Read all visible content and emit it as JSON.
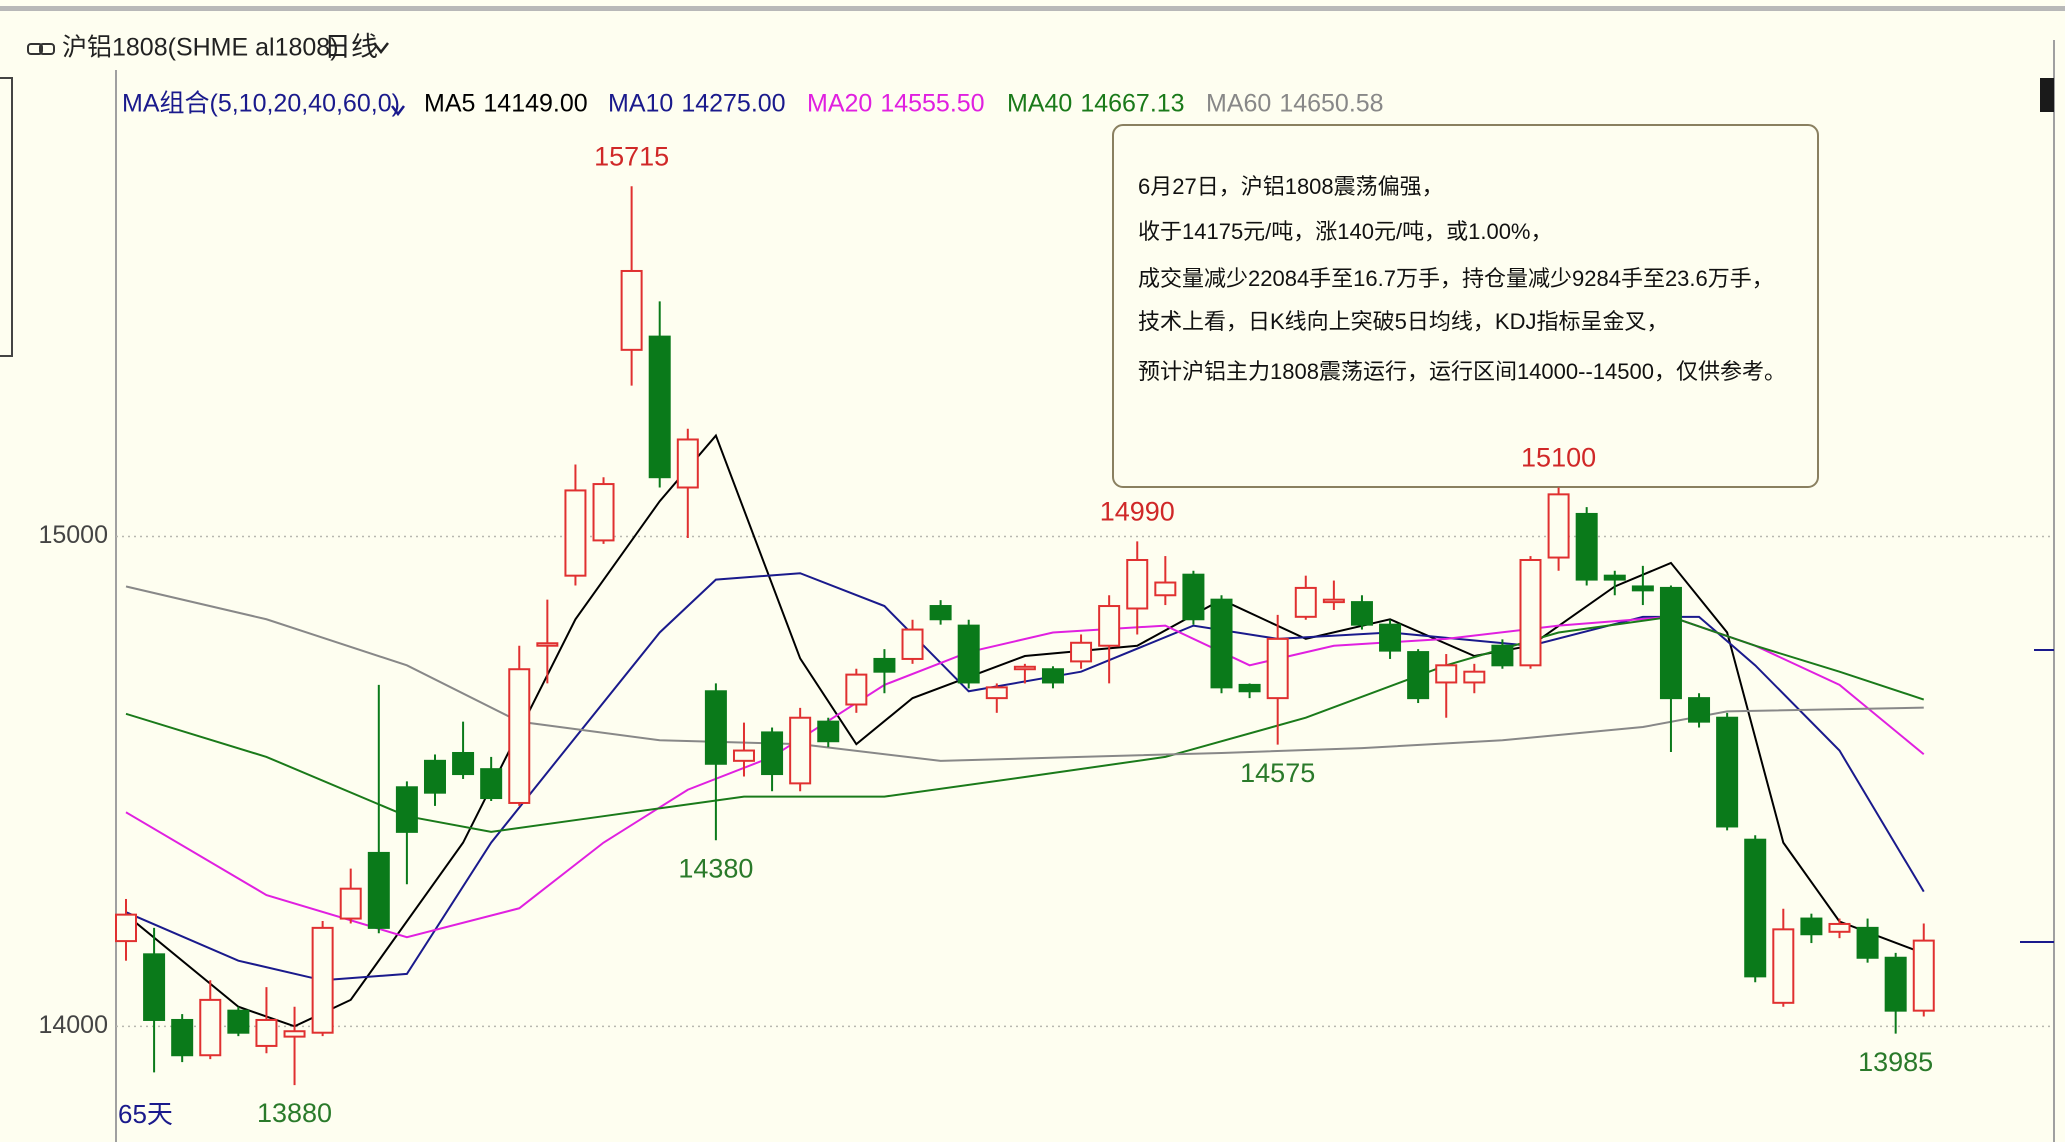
{
  "chart_data": {
    "type": "candlestick",
    "title": "沪铝1808(SHME al1808)",
    "period": "日线",
    "ma_label": "MA组合(5,10,20,40,60,0)",
    "days_label": "65天",
    "ylim": [
      13770,
      15840
    ],
    "yticks": [
      14000,
      15000
    ],
    "grid": true,
    "up_color": "#e03030",
    "down_color": "#0a7a1a",
    "candles": [
      {
        "o": 14174,
        "h": 14260,
        "l": 14134,
        "c": 14228
      },
      {
        "o": 14147,
        "h": 14201,
        "l": 13906,
        "c": 14013
      },
      {
        "o": 14013,
        "h": 14025,
        "l": 13927,
        "c": 13941
      },
      {
        "o": 13941,
        "h": 14094,
        "l": 13933,
        "c": 14054
      },
      {
        "o": 14032,
        "h": 14040,
        "l": 13980,
        "c": 13987
      },
      {
        "o": 13960,
        "h": 14080,
        "l": 13945,
        "c": 14013
      },
      {
        "o": 13979,
        "h": 14040,
        "l": 13880,
        "c": 13990
      },
      {
        "o": 13987,
        "h": 14215,
        "l": 13980,
        "c": 14201
      },
      {
        "o": 14220,
        "h": 14322,
        "l": 14210,
        "c": 14281
      },
      {
        "o": 14354,
        "h": 14697,
        "l": 14190,
        "c": 14201
      },
      {
        "o": 14488,
        "h": 14500,
        "l": 14290,
        "c": 14397
      },
      {
        "o": 14542,
        "h": 14555,
        "l": 14450,
        "c": 14477
      },
      {
        "o": 14558,
        "h": 14622,
        "l": 14505,
        "c": 14515
      },
      {
        "o": 14525,
        "h": 14550,
        "l": 14460,
        "c": 14466
      },
      {
        "o": 14456,
        "h": 14777,
        "l": 14450,
        "c": 14729
      },
      {
        "o": 14777,
        "h": 14871,
        "l": 14700,
        "c": 14782
      },
      {
        "o": 14920,
        "h": 15147,
        "l": 14900,
        "c": 15094
      },
      {
        "o": 14992,
        "h": 15121,
        "l": 14985,
        "c": 15107
      },
      {
        "o": 15381,
        "h": 15715,
        "l": 15308,
        "c": 15542
      },
      {
        "o": 15408,
        "h": 15480,
        "l": 15100,
        "c": 15121
      },
      {
        "o": 15100,
        "h": 15220,
        "l": 14997,
        "c": 15198
      },
      {
        "o": 14684,
        "h": 14700,
        "l": 14380,
        "c": 14536
      },
      {
        "o": 14542,
        "h": 14620,
        "l": 14510,
        "c": 14563
      },
      {
        "o": 14600,
        "h": 14610,
        "l": 14480,
        "c": 14515
      },
      {
        "o": 14496,
        "h": 14650,
        "l": 14480,
        "c": 14630
      },
      {
        "o": 14622,
        "h": 14630,
        "l": 14570,
        "c": 14582
      },
      {
        "o": 14657,
        "h": 14730,
        "l": 14640,
        "c": 14718
      },
      {
        "o": 14750,
        "h": 14770,
        "l": 14680,
        "c": 14724
      },
      {
        "o": 14750,
        "h": 14830,
        "l": 14740,
        "c": 14810
      },
      {
        "o": 14858,
        "h": 14870,
        "l": 14820,
        "c": 14831
      },
      {
        "o": 14818,
        "h": 14830,
        "l": 14690,
        "c": 14702
      },
      {
        "o": 14670,
        "h": 14700,
        "l": 14640,
        "c": 14692
      },
      {
        "o": 14729,
        "h": 14740,
        "l": 14700,
        "c": 14734
      },
      {
        "o": 14729,
        "h": 14735,
        "l": 14690,
        "c": 14702
      },
      {
        "o": 14745,
        "h": 14800,
        "l": 14730,
        "c": 14783
      },
      {
        "o": 14777,
        "h": 14880,
        "l": 14700,
        "c": 14858
      },
      {
        "o": 14853,
        "h": 14990,
        "l": 14800,
        "c": 14952
      },
      {
        "o": 14880,
        "h": 14960,
        "l": 14860,
        "c": 14906
      },
      {
        "o": 14922,
        "h": 14930,
        "l": 14820,
        "c": 14831
      },
      {
        "o": 14871,
        "h": 14880,
        "l": 14680,
        "c": 14692
      },
      {
        "o": 14697,
        "h": 14700,
        "l": 14670,
        "c": 14684
      },
      {
        "o": 14670,
        "h": 14840,
        "l": 14575,
        "c": 14791
      },
      {
        "o": 14836,
        "h": 14920,
        "l": 14830,
        "c": 14895
      },
      {
        "o": 14866,
        "h": 14910,
        "l": 14850,
        "c": 14871
      },
      {
        "o": 14866,
        "h": 14880,
        "l": 14810,
        "c": 14820
      },
      {
        "o": 14820,
        "h": 14830,
        "l": 14750,
        "c": 14767
      },
      {
        "o": 14764,
        "h": 14770,
        "l": 14660,
        "c": 14670
      },
      {
        "o": 14702,
        "h": 14760,
        "l": 14630,
        "c": 14737
      },
      {
        "o": 14702,
        "h": 14740,
        "l": 14680,
        "c": 14724
      },
      {
        "o": 14777,
        "h": 14790,
        "l": 14730,
        "c": 14737
      },
      {
        "o": 14737,
        "h": 14960,
        "l": 14730,
        "c": 14952
      },
      {
        "o": 14957,
        "h": 15100,
        "l": 14930,
        "c": 15086
      },
      {
        "o": 15046,
        "h": 15060,
        "l": 14900,
        "c": 14912
      },
      {
        "o": 14920,
        "h": 14930,
        "l": 14880,
        "c": 14912
      },
      {
        "o": 14898,
        "h": 14940,
        "l": 14860,
        "c": 14890
      },
      {
        "o": 14895,
        "h": 14900,
        "l": 14560,
        "c": 14670
      },
      {
        "o": 14670,
        "h": 14680,
        "l": 14610,
        "c": 14622
      },
      {
        "o": 14630,
        "h": 14640,
        "l": 14400,
        "c": 14408
      },
      {
        "o": 14381,
        "h": 14390,
        "l": 14090,
        "c": 14102
      },
      {
        "o": 14048,
        "h": 14240,
        "l": 14040,
        "c": 14198
      },
      {
        "o": 14220,
        "h": 14230,
        "l": 14170,
        "c": 14188
      },
      {
        "o": 14193,
        "h": 14220,
        "l": 14180,
        "c": 14209
      },
      {
        "o": 14201,
        "h": 14220,
        "l": 14130,
        "c": 14140
      },
      {
        "o": 14140,
        "h": 14150,
        "l": 13985,
        "c": 14032
      },
      {
        "o": 14032,
        "h": 14210,
        "l": 14020,
        "c": 14175
      }
    ],
    "series": [
      {
        "name": "MA5",
        "value_label": "14149.00",
        "color": "#000000",
        "x": [
          0,
          4,
          6,
          8,
          12,
          16,
          19,
          21,
          24,
          26,
          28,
          32,
          36,
          39,
          42,
          45,
          48,
          50,
          53,
          55,
          57,
          59,
          61,
          64
        ],
        "values": [
          14228,
          14040,
          14000,
          14054,
          14375,
          14831,
          15072,
          15206,
          14751,
          14576,
          14670,
          14756,
          14777,
          14871,
          14791,
          14831,
          14756,
          14777,
          14898,
          14946,
          14804,
          14375,
          14214,
          14149
        ]
      },
      {
        "name": "MA10",
        "value_label": "14275.00",
        "color": "#1a1a8c",
        "x": [
          0,
          4,
          7,
          10,
          13,
          16,
          19,
          21,
          24,
          27,
          30,
          34,
          38,
          41,
          45,
          50,
          54,
          56,
          58,
          61,
          64
        ],
        "values": [
          14233,
          14134,
          14094,
          14107,
          14375,
          14590,
          14804,
          14912,
          14925,
          14858,
          14684,
          14724,
          14818,
          14791,
          14804,
          14777,
          14836,
          14836,
          14737,
          14563,
          14275
        ]
      },
      {
        "name": "MA20",
        "value_label": "14555.50",
        "color": "#e020e0",
        "x": [
          0,
          5,
          10,
          14,
          17,
          20,
          23,
          27,
          30,
          33,
          37,
          40,
          43,
          47,
          51,
          55,
          58,
          61,
          64
        ],
        "values": [
          14437,
          14268,
          14182,
          14241,
          14375,
          14483,
          14550,
          14697,
          14764,
          14804,
          14818,
          14737,
          14777,
          14791,
          14818,
          14836,
          14777,
          14697,
          14555.5
        ]
      },
      {
        "name": "MA40",
        "value_label": "14667.13",
        "color": "#1a7a1a",
        "x": [
          0,
          5,
          10,
          13,
          17,
          22,
          27,
          32,
          37,
          42,
          47,
          51,
          55,
          58,
          61,
          64
        ],
        "values": [
          14638,
          14550,
          14429,
          14397,
          14429,
          14469,
          14469,
          14509,
          14550,
          14630,
          14737,
          14804,
          14836,
          14777,
          14724,
          14667.13
        ]
      },
      {
        "name": "MA60",
        "value_label": "14650.58",
        "color": "#888888",
        "x": [
          0,
          5,
          10,
          14,
          19,
          24,
          29,
          34,
          39,
          44,
          49,
          54,
          57,
          64
        ],
        "values": [
          14898,
          14831,
          14737,
          14622,
          14584,
          14576,
          14542,
          14550,
          14558,
          14568,
          14584,
          14611,
          14643,
          14650.58
        ]
      }
    ],
    "annotations": [
      {
        "index": 18,
        "value": 15715,
        "kind": "high"
      },
      {
        "index": 21,
        "value": 14380,
        "kind": "low"
      },
      {
        "index": 36,
        "value": 14990,
        "kind": "high"
      },
      {
        "index": 41,
        "value": 14575,
        "kind": "low"
      },
      {
        "index": 51,
        "value": 15100,
        "kind": "high"
      },
      {
        "index": 6,
        "value": 13880,
        "kind": "low"
      },
      {
        "index": 63,
        "value": 13985,
        "kind": "low"
      }
    ],
    "note_lines": [
      "6月27日，沪铝1808震荡偏强，",
      "收于14175元/吨，涨140元/吨，或1.00%，",
      "成交量减少22084手至16.7万手，持仓量减少9284手至23.6万手，",
      "技术上看，日K线向上突破5日均线，KDJ指标呈金叉，",
      "预计沪铝主力1808震荡运行，运行区间14000--14500，仅供参考。"
    ]
  }
}
